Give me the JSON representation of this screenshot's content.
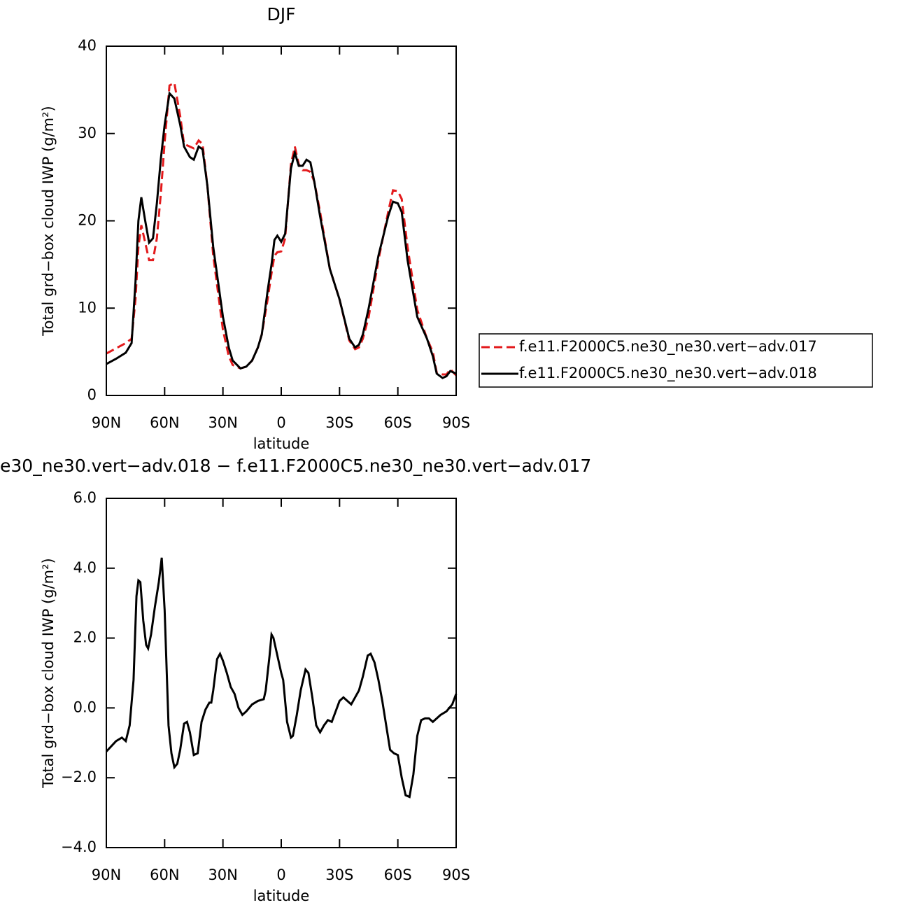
{
  "chart_data": [
    {
      "type": "line",
      "title": "DJF",
      "xlabel": "latitude",
      "ylabel": "Total grd−box cloud IWP (g/m²)",
      "x": [
        90,
        85,
        80,
        77,
        75,
        73.5,
        72,
        70,
        68,
        66,
        64,
        62,
        60,
        57.5,
        55,
        52,
        50,
        47,
        45,
        42.5,
        40.5,
        38,
        35,
        30,
        27,
        25,
        21,
        18,
        15,
        12,
        10,
        7,
        5,
        3.5,
        2,
        0,
        -2,
        -5,
        -7,
        -9,
        -11,
        -13,
        -15,
        -17,
        -20,
        -25,
        -30,
        -35,
        -38,
        -40,
        -42,
        -45,
        -50,
        -55,
        -57.5,
        -60,
        -62,
        -65,
        -70,
        -75,
        -78,
        -80,
        -83,
        -85,
        -87,
        -90
      ],
      "series": [
        {
          "name": "f.e11.F2000C5.ne30_ne30.vert−adv.017",
          "color": "#e31a1c",
          "linestyle": "dashed",
          "values": [
            4.8,
            5.4,
            6,
            6.5,
            11,
            17,
            19.5,
            17.5,
            15.5,
            15.5,
            18,
            23,
            29,
            35.5,
            35.8,
            32,
            28.8,
            28.5,
            28.3,
            29.2,
            28.8,
            24,
            16,
            7.5,
            4.5,
            3.5,
            3.1,
            3.3,
            4,
            5.5,
            7,
            11,
            14,
            16,
            16.4,
            16.5,
            18,
            26.5,
            28.5,
            26.5,
            25.8,
            25.8,
            25.6,
            24.5,
            21,
            14.5,
            11,
            6.3,
            5.3,
            5.5,
            6.5,
            9,
            15.5,
            21,
            23.5,
            23.4,
            22.5,
            17,
            9.8,
            6.5,
            5,
            2.6,
            2.4,
            2.4,
            3,
            2.3
          ]
        },
        {
          "name": "f.e11.F2000C5.ne30_ne30.vert−adv.018",
          "color": "#000000",
          "linestyle": "solid",
          "values": [
            3.6,
            4.2,
            4.9,
            6,
            13,
            20,
            22.7,
            20,
            17.5,
            18,
            22,
            27,
            31,
            34.6,
            34,
            31,
            28.5,
            27.3,
            27,
            28.5,
            28.2,
            24,
            17,
            9,
            5.5,
            4,
            3.1,
            3.3,
            4,
            5.5,
            7,
            12,
            15,
            17.8,
            18.3,
            17.6,
            18.5,
            26,
            27.8,
            26.3,
            26.3,
            27,
            26.7,
            24.5,
            20.5,
            14.5,
            11,
            6.5,
            5.5,
            5.8,
            7,
            10,
            16,
            20.5,
            22.2,
            22,
            21,
            15.5,
            9,
            6.5,
            4.5,
            2.5,
            2,
            2.2,
            2.8,
            2.5
          ]
        }
      ],
      "xlim": [
        90,
        -90
      ],
      "xticks": [
        {
          "value": 90,
          "label": "90N"
        },
        {
          "value": 60,
          "label": "60N"
        },
        {
          "value": 30,
          "label": "30N"
        },
        0,
        {
          "value": -30,
          "label": "30S"
        },
        {
          "value": -60,
          "label": "60S"
        },
        {
          "value": -90,
          "label": "90S"
        }
      ],
      "ylim": [
        0,
        40
      ],
      "yticks": [
        0,
        10,
        20,
        30,
        40
      ],
      "legend": "right"
    },
    {
      "type": "line",
      "title": "e30_ne30.vert−adv.018 − f.e11.F2000C5.ne30_ne30.vert−adv.017",
      "xlabel": "latitude",
      "ylabel": "Total grd−box cloud IWP (g/m²)",
      "x": [
        90,
        85,
        82,
        80,
        78,
        76,
        74.5,
        73.5,
        72.5,
        71,
        69.5,
        68.5,
        67,
        65,
        63,
        61.5,
        60,
        58,
        56.5,
        55,
        53.5,
        52,
        50,
        48.5,
        47,
        45,
        43,
        41,
        39,
        37,
        36,
        35,
        33,
        31.5,
        30,
        28,
        26,
        24,
        22,
        20,
        18,
        15,
        12,
        9,
        8,
        6,
        5,
        4,
        2,
        0,
        -1,
        -3,
        -5,
        -6,
        -8,
        -10,
        -12.5,
        -14,
        -16,
        -18,
        -20,
        -22,
        -24,
        -26,
        -28,
        -30,
        -32,
        -34,
        -36,
        -38,
        -40,
        -42,
        -44.5,
        -46,
        -48,
        -50,
        -52,
        -54,
        -56,
        -58,
        -60,
        -62,
        -64,
        -66,
        -68,
        -70,
        -72,
        -74,
        -76,
        -78,
        -80,
        -82,
        -85,
        -88,
        -90
      ],
      "series": [
        {
          "color": "#000000",
          "linestyle": "solid",
          "values": [
            -1.25,
            -0.95,
            -0.85,
            -0.95,
            -0.5,
            0.8,
            3.2,
            3.65,
            3.6,
            2.5,
            1.8,
            1.7,
            2.1,
            2.9,
            3.6,
            4.3,
            2.8,
            -0.5,
            -1.3,
            -1.7,
            -1.6,
            -1.2,
            -0.45,
            -0.4,
            -0.7,
            -1.35,
            -1.3,
            -0.4,
            -0.05,
            0.15,
            0.15,
            0.5,
            1.4,
            1.55,
            1.35,
            1.0,
            0.6,
            0.4,
            0.0,
            -0.2,
            -0.1,
            0.1,
            0.2,
            0.25,
            0.5,
            1.5,
            2.1,
            2.0,
            1.5,
            1.0,
            0.8,
            -0.4,
            -0.85,
            -0.8,
            -0.2,
            0.5,
            1.1,
            1.0,
            0.3,
            -0.5,
            -0.7,
            -0.5,
            -0.35,
            -0.4,
            -0.1,
            0.2,
            0.3,
            0.2,
            0.1,
            0.3,
            0.5,
            0.9,
            1.5,
            1.55,
            1.3,
            0.8,
            0.2,
            -0.5,
            -1.2,
            -1.3,
            -1.35,
            -2.0,
            -2.5,
            -2.55,
            -1.9,
            -0.8,
            -0.35,
            -0.3,
            -0.3,
            -0.4,
            -0.3,
            -0.2,
            -0.1,
            0.1,
            0.4
          ]
        }
      ],
      "xlim": [
        90,
        -90
      ],
      "xticks": [
        {
          "value": 90,
          "label": "90N"
        },
        {
          "value": 60,
          "label": "60N"
        },
        {
          "value": 30,
          "label": "30N"
        },
        0,
        {
          "value": -30,
          "label": "30S"
        },
        {
          "value": -60,
          "label": "60S"
        },
        {
          "value": -90,
          "label": "90S"
        }
      ],
      "ylim": [
        -4,
        6
      ],
      "yticks": [
        {
          "value": -4,
          "label": "−4.0"
        },
        {
          "value": -2,
          "label": "−2.0"
        },
        {
          "value": 0,
          "label": "0.0"
        },
        {
          "value": 2,
          "label": "2.0"
        },
        {
          "value": 4,
          "label": "4.0"
        },
        {
          "value": 6,
          "label": "6.0"
        }
      ]
    }
  ]
}
